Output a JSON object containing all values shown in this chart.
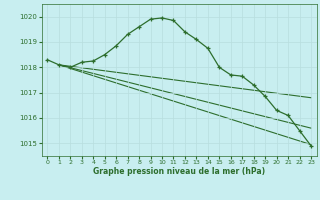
{
  "title": "Graphe pression niveau de la mer (hPa)",
  "background_color": "#c8eef0",
  "grid_color": "#b8dede",
  "line_color": "#2d6e2d",
  "xlim": [
    -0.5,
    23.5
  ],
  "ylim": [
    1014.5,
    1020.5
  ],
  "yticks": [
    1015,
    1016,
    1017,
    1018,
    1019,
    1020
  ],
  "xticks": [
    0,
    1,
    2,
    3,
    4,
    5,
    6,
    7,
    8,
    9,
    10,
    11,
    12,
    13,
    14,
    15,
    16,
    17,
    18,
    19,
    20,
    21,
    22,
    23
  ],
  "main_series": {
    "x": [
      0,
      1,
      2,
      3,
      4,
      5,
      6,
      7,
      8,
      9,
      10,
      11,
      12,
      13,
      14,
      15,
      16,
      17,
      18,
      19,
      20,
      21,
      22,
      23
    ],
    "y": [
      1018.3,
      1018.1,
      1018.0,
      1018.2,
      1018.25,
      1018.5,
      1018.85,
      1019.3,
      1019.6,
      1019.9,
      1019.95,
      1019.85,
      1019.4,
      1019.1,
      1018.75,
      1018.0,
      1017.7,
      1017.65,
      1017.3,
      1016.85,
      1016.3,
      1016.1,
      1015.5,
      1014.9
    ]
  },
  "straight_lines": [
    {
      "x": [
        1,
        23
      ],
      "y": [
        1018.1,
        1016.8
      ]
    },
    {
      "x": [
        1,
        23
      ],
      "y": [
        1018.1,
        1015.6
      ]
    },
    {
      "x": [
        1,
        23
      ],
      "y": [
        1018.1,
        1014.95
      ]
    }
  ],
  "figsize": [
    3.2,
    2.0
  ],
  "dpi": 100
}
